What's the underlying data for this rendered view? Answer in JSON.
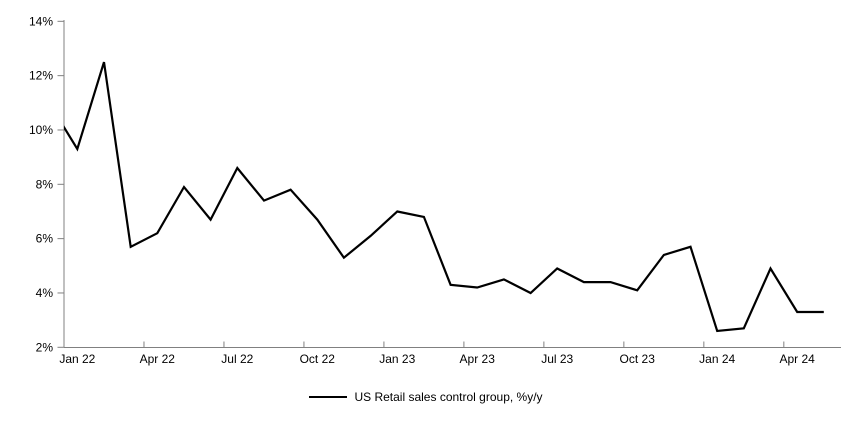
{
  "chart_data": {
    "type": "line",
    "title": "",
    "series": [
      {
        "name": "US Retail sales control group, %y/y",
        "color": "#000000",
        "x": [
          "Dec 21",
          "Jan 22",
          "Feb 22",
          "Mar 22",
          "Apr 22",
          "May 22",
          "Jun 22",
          "Jul 22",
          "Aug 22",
          "Sep 22",
          "Oct 22",
          "Nov 22",
          "Dec 22",
          "Jan 23",
          "Feb 23",
          "Mar 23",
          "Apr 23",
          "May 23",
          "Jun 23",
          "Jul 23",
          "Aug 23",
          "Sep 23",
          "Oct 23",
          "Nov 23",
          "Dec 23",
          "Jan 24",
          "Feb 24",
          "Mar 24",
          "Apr 24",
          "May 24"
        ],
        "values": [
          10.9,
          9.3,
          12.5,
          5.7,
          6.2,
          7.9,
          6.7,
          8.6,
          7.4,
          7.8,
          6.7,
          5.3,
          6.1,
          7.0,
          6.8,
          4.3,
          4.2,
          4.5,
          4.0,
          4.9,
          4.4,
          4.4,
          4.1,
          5.4,
          5.7,
          2.6,
          2.7,
          4.9,
          3.3,
          3.3
        ]
      }
    ],
    "x_tick_labels": [
      "Jan 22",
      "Apr 22",
      "Jul 22",
      "Oct 22",
      "Jan 23",
      "Apr 23",
      "Jul 23",
      "Oct 23",
      "Jan 24",
      "Apr 24"
    ],
    "y_tick_labels": [
      "2%",
      "4%",
      "6%",
      "8%",
      "10%",
      "12%",
      "14%"
    ],
    "ylim": [
      2,
      14
    ],
    "y_tick_step": 2,
    "grid": false,
    "legend_position": "bottom",
    "note": "first data point (Dec 21) lies left of the plot edge and is clipped by the y-axis"
  },
  "legend": {
    "label": "US Retail sales control group, %y/y"
  },
  "colors": {
    "line": "#000000",
    "axis": "#808080",
    "text": "#000000",
    "background": "#ffffff"
  }
}
